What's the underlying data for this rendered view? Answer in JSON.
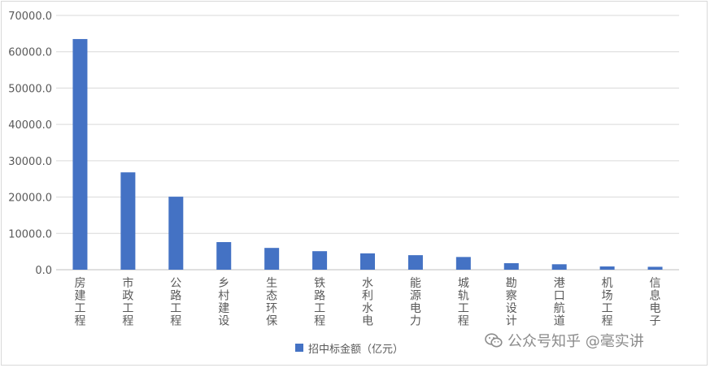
{
  "chart_data": {
    "type": "bar",
    "categories": [
      "房建工程",
      "市政工程",
      "公路工程",
      "乡村建设",
      "生态环保",
      "铁路工程",
      "水利水电",
      "能源电力",
      "城轨工程",
      "勘察设计",
      "港口航道",
      "机场工程",
      "信息电子"
    ],
    "series": [
      {
        "name": "招中标金额（亿元）",
        "values": [
          63500,
          26800,
          20100,
          7600,
          6000,
          5100,
          4500,
          4000,
          3500,
          1800,
          1500,
          900,
          800
        ]
      }
    ],
    "ylim": [
      0,
      70000
    ],
    "yticks": [
      "0.0",
      "10000.0",
      "20000.0",
      "30000.0",
      "40000.0",
      "50000.0",
      "60000.0",
      "70000.0"
    ],
    "grid": true,
    "legend_position": "bottom",
    "bar_color": "#4472c4"
  },
  "watermark": {
    "text": "公众号知乎 @毫实讲",
    "icon": "wechat-icon"
  },
  "colors": {
    "bar": "#4472c4",
    "grid": "#d9d9d9",
    "axis_text": "#595959"
  }
}
